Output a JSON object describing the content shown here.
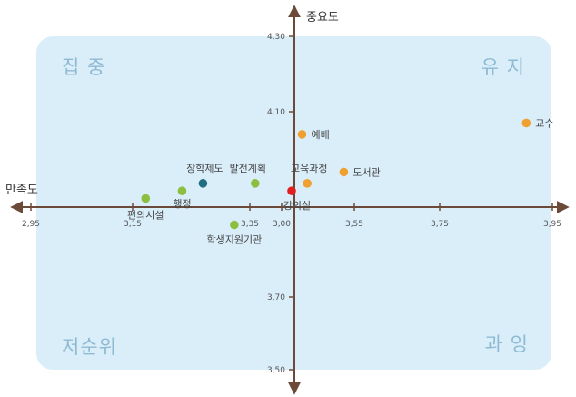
{
  "chart_data": {
    "type": "scatter",
    "xlabel": "만족도",
    "ylabel": "중요도",
    "x_ticks": [
      "2,95",
      "3,15",
      "3,35",
      "3,00",
      "3,55",
      "3,75",
      "3,95"
    ],
    "y_ticks": [
      "4,30",
      "4,10",
      "3,70",
      "3,50"
    ],
    "quadrants": {
      "top_left": "집 중",
      "top_right": "유 지",
      "bottom_left": "저순위",
      "bottom_right": "과 잉"
    },
    "colors": {
      "background": "#daeefa",
      "axis": "#6b4a3a",
      "orange": "#f0a030",
      "green": "#8cbf3f",
      "teal": "#1f6f80",
      "red": "#e02020"
    },
    "points": [
      {
        "label": "교수",
        "x": 3.9,
        "y": 4.07,
        "color": "orange"
      },
      {
        "label": "예배",
        "x": 3.47,
        "y": 4.04,
        "color": "orange"
      },
      {
        "label": "도서관",
        "x": 3.55,
        "y": 3.94,
        "color": "orange"
      },
      {
        "label": "교육과정",
        "x": 3.48,
        "y": 3.91,
        "color": "orange"
      },
      {
        "label": "강의실",
        "x": 3.45,
        "y": 3.89,
        "color": "red"
      },
      {
        "label": "발전계획",
        "x": 3.38,
        "y": 3.91,
        "color": "green"
      },
      {
        "label": "장학제도",
        "x": 3.28,
        "y": 3.91,
        "color": "teal"
      },
      {
        "label": "행정",
        "x": 3.24,
        "y": 3.89,
        "color": "green"
      },
      {
        "label": "편의시설",
        "x": 3.17,
        "y": 3.87,
        "color": "green"
      },
      {
        "label": "학생지원기관",
        "x": 3.34,
        "y": 3.8,
        "color": "green"
      }
    ]
  }
}
